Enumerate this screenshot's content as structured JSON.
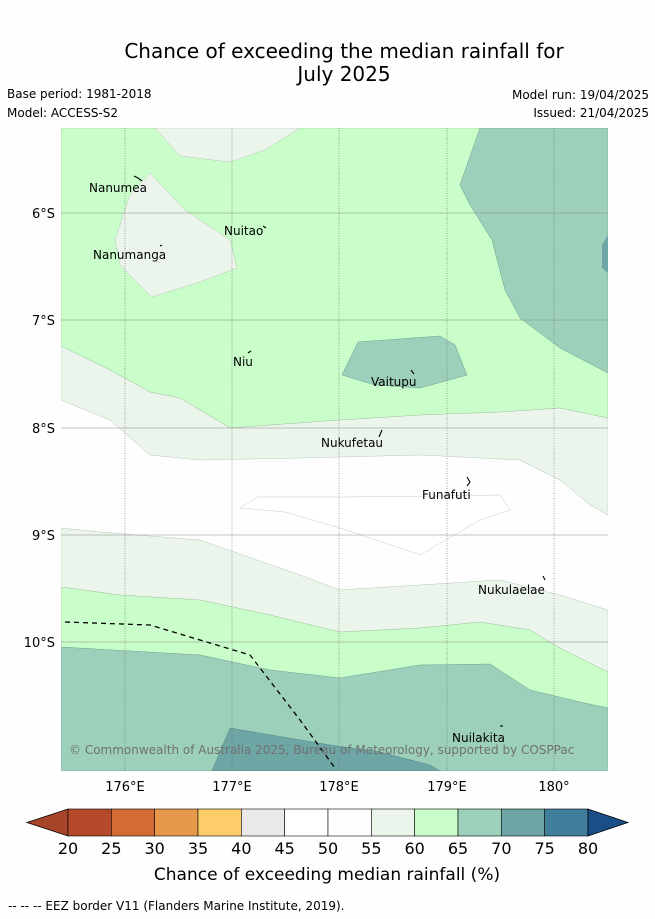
{
  "title": {
    "line1": "Chance of exceeding the median rainfall for",
    "line2": "July 2025"
  },
  "meta": {
    "base_period": "Base period: 1981-2018",
    "model": "Model: ACCESS-S2",
    "model_run": "Model run: 19/04/2025",
    "issued": "Issued: 21/04/2025"
  },
  "map": {
    "lat_labels": [
      "6°S",
      "7°S",
      "8°S",
      "9°S",
      "10°S"
    ],
    "lon_labels": [
      "176°E",
      "177°E",
      "178°E",
      "179°E",
      "180°"
    ],
    "places": [
      {
        "name": "Nanumea"
      },
      {
        "name": "Nuitao"
      },
      {
        "name": "Nanumanga"
      },
      {
        "name": "Niu"
      },
      {
        "name": "Vaitupu"
      },
      {
        "name": "Nukufetau"
      },
      {
        "name": "Funafuti"
      },
      {
        "name": "Nukulaelae"
      },
      {
        "name": "Nuilakita"
      }
    ],
    "copyright": "© Commonwealth of Australia 2025, Bureau of Meteorology, supported by COSPPac"
  },
  "colorbar": {
    "ticks": [
      "20",
      "25",
      "30",
      "35",
      "40",
      "45",
      "50",
      "55",
      "60",
      "65",
      "70",
      "75",
      "80"
    ],
    "colors": [
      "#a84428",
      "#b54a2a",
      "#d46a35",
      "#e6984b",
      "#fdcd6a",
      "#ebe9e7",
      "#ffffff",
      "#fdfefd",
      "#ebf5eb",
      "#c9fdc9",
      "#9dd0ba",
      "#6ea6a6",
      "#417e9b",
      "#1a4e88"
    ],
    "label": "Chance of exceeding median rainfall (%)"
  },
  "footer": "--  --  -- EEZ border V11 (Flanders Marine Institute, 2019)."
}
